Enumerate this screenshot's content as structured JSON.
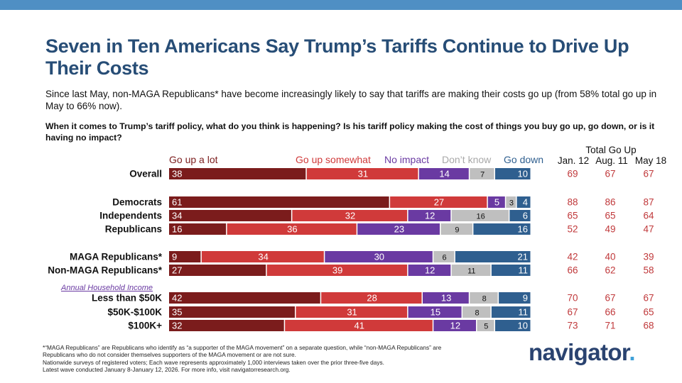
{
  "header": {
    "title": "Seven in Ten Americans Say Trump’s Tariffs Continue to Drive Up Their Costs",
    "subtitle": "Since last May, non-MAGA Republicans* have become increasingly likely to say that tariffs are making their costs go up (from 58% total go up in May to 66% now).",
    "question": "When it comes to Trump’s tariff policy, what do you think is happening? Is his tariff policy making the cost of things you buy go up, go down, or is it having no impact?"
  },
  "colors": {
    "top_bar": "#4f8fc4",
    "title": "#274d76",
    "go_up_a_lot": "#7b1c1c",
    "go_up_somewhat": "#d03a3a",
    "no_impact": "#6a3aa2",
    "dont_know": "#bfbfbf",
    "go_down": "#2f5f8f",
    "total_text": "#c0393b",
    "section_label": "#6a3aa2"
  },
  "section_label": "Annual Household Income",
  "total_go_up": {
    "header": "Total Go Up",
    "waves": [
      "Jan. 12",
      "Aug. 11",
      "May 18"
    ]
  },
  "chart_data": {
    "type": "bar",
    "orientation": "horizontal",
    "stacked": true,
    "series": [
      {
        "name": "Go up a lot",
        "values": [
          38,
          61,
          34,
          16,
          9,
          27,
          42,
          35,
          32
        ]
      },
      {
        "name": "Go up somewhat",
        "values": [
          31,
          27,
          32,
          36,
          34,
          39,
          28,
          31,
          41
        ]
      },
      {
        "name": "No impact",
        "values": [
          14,
          5,
          12,
          23,
          30,
          12,
          13,
          15,
          12
        ]
      },
      {
        "name": "Don’t know",
        "values": [
          7,
          3,
          16,
          9,
          6,
          11,
          8,
          8,
          5
        ]
      },
      {
        "name": "Go down",
        "values": [
          10,
          4,
          6,
          16,
          21,
          11,
          9,
          11,
          10
        ]
      }
    ],
    "categories": [
      "Overall",
      "Democrats",
      "Independents",
      "Republicans",
      "MAGA Republicans*",
      "Non-MAGA Republicans*",
      "Less than $50K",
      "$50K-$100K",
      "$100K+"
    ],
    "total_go_up": {
      "Jan. 12": [
        69,
        88,
        65,
        52,
        42,
        66,
        70,
        67,
        73
      ],
      "Aug. 11": [
        67,
        86,
        65,
        49,
        40,
        62,
        67,
        66,
        71
      ],
      "May 18": [
        67,
        87,
        64,
        47,
        39,
        58,
        67,
        65,
        68
      ]
    },
    "xlim": [
      0,
      100
    ],
    "legend": "top"
  },
  "footnotes": [
    "*“MAGA Republicans” are Republicans who identify as “a supporter of the MAGA movement” on a separate question, while “non-MAGA Republicans” are",
    "Republicans who do not consider themselves supporters of the MAGA movement or are not sure.",
    "Nationwide surveys of registered voters; Each wave represents approximately 1,000 interviews taken over the prior three-five days.",
    "Latest wave conducted January 8-January 12, 2026. For more info, visit navigatorresearch.org."
  ],
  "logo": {
    "text": "navigator",
    "dot": "."
  }
}
